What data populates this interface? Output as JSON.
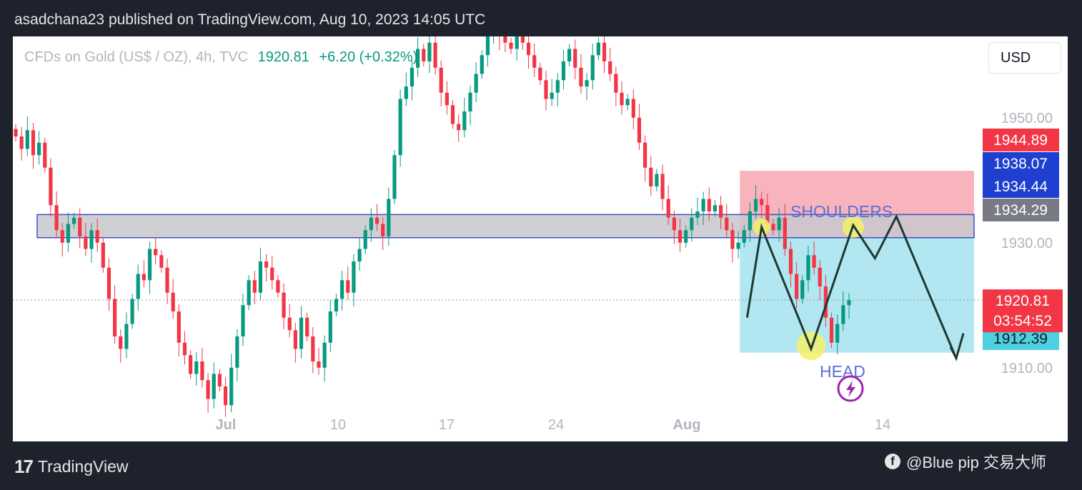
{
  "caption": "asadchana23 published on TradingView.com, Aug 10, 2023 14:05 UTC",
  "legend": {
    "symbol": "CFDs on Gold (US$ / OZ), 4h, TVC",
    "price": "1920.81",
    "change": "+6.20 (+0.32%)"
  },
  "currency": "USD",
  "footer": {
    "brand": "TradingView",
    "watermark": "@Blue pip 交易大师"
  },
  "colors": {
    "up": "#089981",
    "down": "#f23645",
    "zone_gray": "#c8c8cc",
    "zone_border": "#3d4fc4",
    "stop_zone": "#f7a7b0",
    "target_zone": "#aee6f0",
    "highlight": "#f5f06a",
    "annotation_text": "#5b6fd6",
    "drawing": "#1b3a32"
  },
  "chart_data": {
    "type": "candlestick",
    "symbol": "CFDs on Gold (US$ / OZ)",
    "timeframe": "4h",
    "ylim": [
      1903,
      1963
    ],
    "y_ticks": [
      "1950.00",
      "1930.00",
      "1910.00"
    ],
    "x_ticks": [
      "Jul",
      "10",
      "17",
      "24",
      "Aug",
      "14"
    ],
    "last_price": 1920.81,
    "countdown": "03:54:52",
    "price_labels": [
      {
        "value": "1944.89",
        "kind": "stop"
      },
      {
        "value": "1938.07",
        "kind": "entry"
      },
      {
        "value": "1934.44",
        "kind": "zone-top"
      },
      {
        "value": "1934.29",
        "kind": "zone-bottom"
      },
      {
        "value": "1912.39",
        "kind": "target"
      }
    ],
    "annotations": [
      {
        "text": "SHOULDERS"
      },
      {
        "text": "HEAD"
      }
    ],
    "zones": {
      "resistance": [
        1930.8,
        1934.5
      ],
      "stop": [
        1930.8,
        1941.5
      ],
      "target": [
        1912.4,
        1930.8
      ]
    },
    "closes": [
      1947,
      1945,
      1948,
      1944,
      1946,
      1942,
      1936,
      1932,
      1930,
      1933,
      1934,
      1931,
      1929,
      1932,
      1930,
      1926,
      1921,
      1915,
      1913,
      1917,
      1921,
      1925,
      1924,
      1929,
      1928,
      1926,
      1922,
      1919,
      1914,
      1912,
      1909,
      1911,
      1908,
      1905,
      1909,
      1907,
      1904,
      1910,
      1915,
      1920,
      1924,
      1922,
      1927,
      1926,
      1924,
      1922,
      1918,
      1916,
      1913,
      1918,
      1915,
      1911,
      1910,
      1914,
      1919,
      1921,
      1924,
      1922,
      1927,
      1929,
      1932,
      1934,
      1933,
      1931,
      1937,
      1944,
      1953,
      1955,
      1958,
      1961,
      1959,
      1962,
      1958,
      1954,
      1952,
      1949,
      1948,
      1951,
      1954,
      1957,
      1960,
      1963,
      1965,
      1963,
      1962,
      1961,
      1964,
      1962,
      1960,
      1958,
      1956,
      1953,
      1954,
      1956,
      1959,
      1961,
      1958,
      1955,
      1956,
      1960,
      1962,
      1959,
      1957,
      1954,
      1952,
      1953,
      1950,
      1946,
      1942,
      1939,
      1941,
      1937,
      1934,
      1932,
      1930,
      1932,
      1934,
      1935,
      1937,
      1935,
      1936,
      1934,
      1932,
      1929,
      1930,
      1932,
      1935,
      1937,
      1936,
      1933,
      1932,
      1934,
      1929,
      1925,
      1921,
      1924,
      1928,
      1926,
      1923,
      1918,
      1914,
      1917,
      1920,
      1920.81
    ],
    "last_bar_date": "Aug 10, 2023"
  },
  "drawings": {
    "pattern_name": "SHOULDERS / HEAD",
    "direction": "down"
  }
}
